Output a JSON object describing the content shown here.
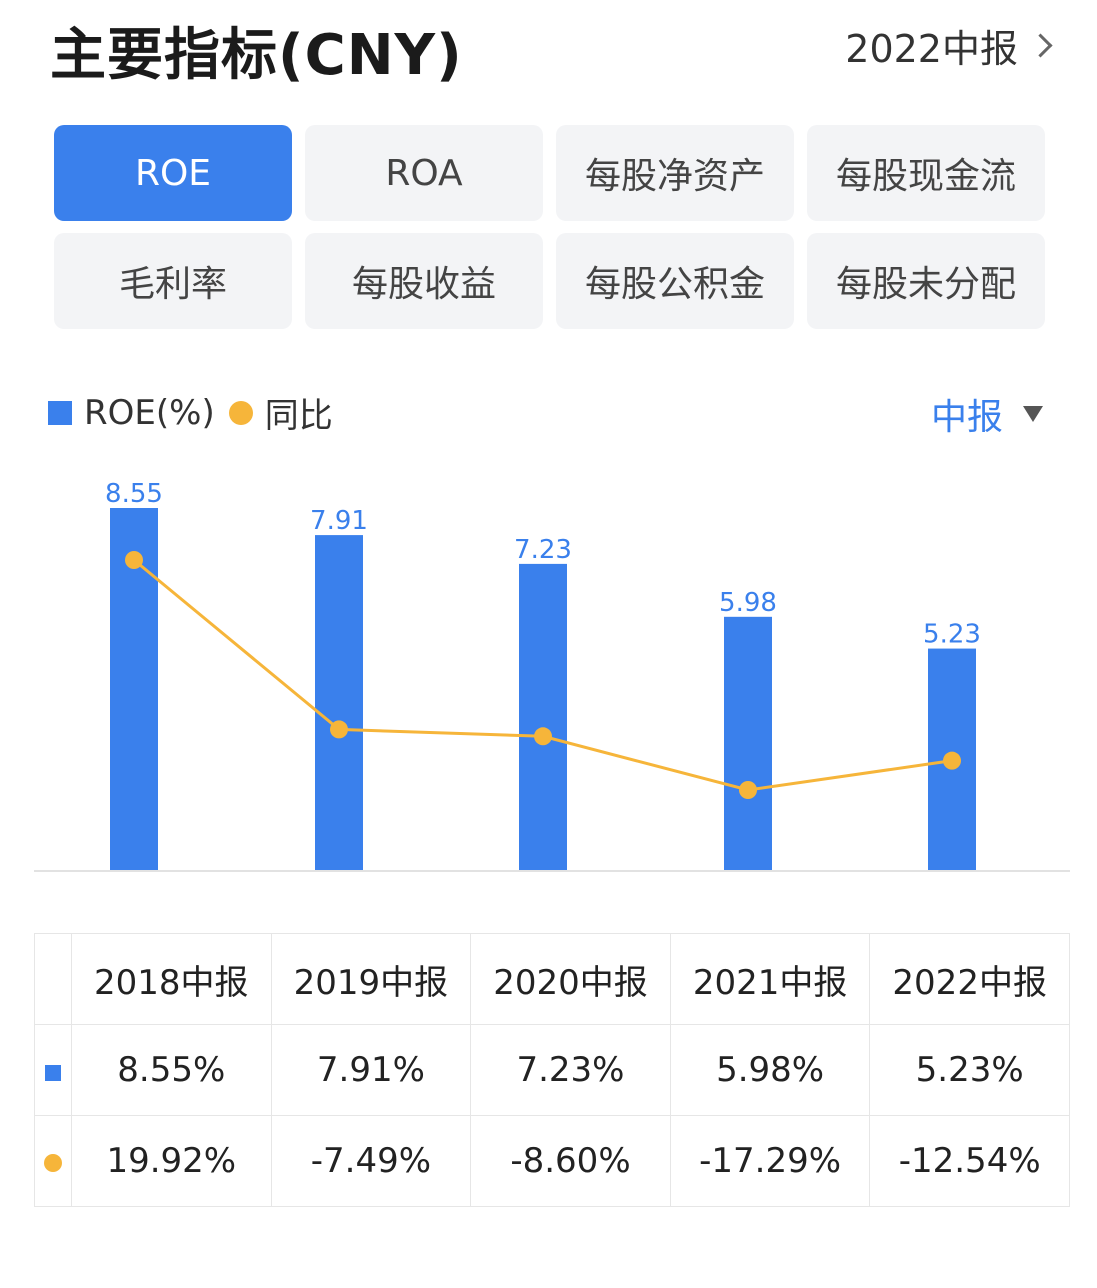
{
  "header": {
    "title": "主要指标(CNY)",
    "period": "2022中报"
  },
  "tabs": [
    {
      "label": "ROE",
      "active": true
    },
    {
      "label": "ROA"
    },
    {
      "label": "每股净资产"
    },
    {
      "label": "每股现金流"
    },
    {
      "label": "毛利率"
    },
    {
      "label": "每股收益"
    },
    {
      "label": "每股公积金"
    },
    {
      "label": "每股未分配"
    }
  ],
  "legend": {
    "series1": "ROE(%)",
    "series2": "同比"
  },
  "report_type": "中报",
  "colors": {
    "accent": "#3a80ec",
    "line": "#f6b53a",
    "positive": "#e04444",
    "negative": "#2aa84f"
  },
  "chart_data": {
    "type": "bar",
    "categories": [
      "2018中报",
      "2019中报",
      "2020中报",
      "2021中报",
      "2022中报"
    ],
    "series": [
      {
        "name": "ROE(%)",
        "type": "bar",
        "values": [
          8.55,
          7.91,
          7.23,
          5.98,
          5.23
        ],
        "labels": [
          "8.55",
          "7.91",
          "7.23",
          "5.98",
          "5.23"
        ]
      },
      {
        "name": "同比",
        "type": "line",
        "values": [
          19.92,
          -7.49,
          -8.6,
          -17.29,
          -12.54
        ]
      }
    ]
  },
  "table": {
    "headers": [
      "2018中报",
      "2019中报",
      "2020中报",
      "2021中报",
      "2022中报"
    ],
    "roe_row": [
      "8.55%",
      "7.91%",
      "7.23%",
      "5.98%",
      "5.23%"
    ],
    "yoy_row": [
      "19.92%",
      "-7.49%",
      "-8.60%",
      "-17.29%",
      "-12.54%"
    ]
  }
}
